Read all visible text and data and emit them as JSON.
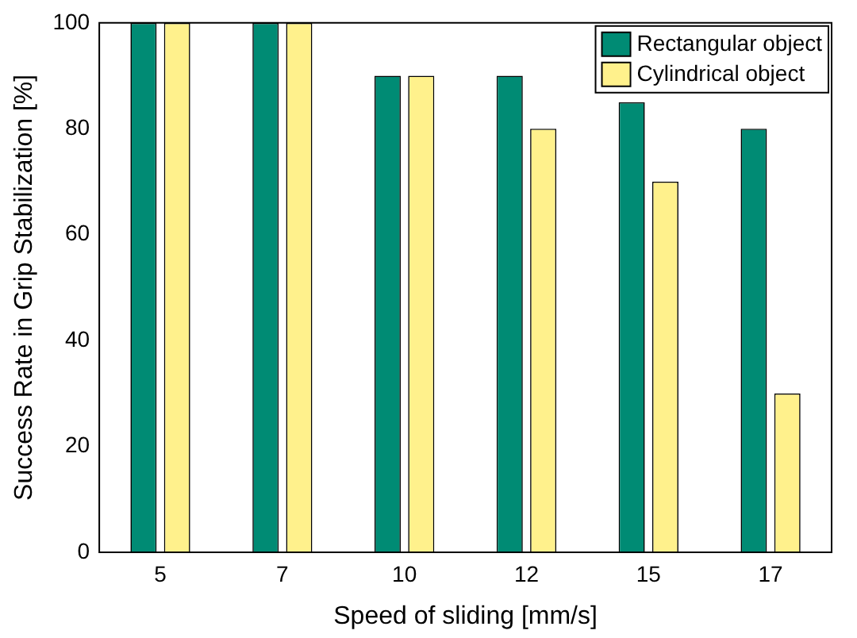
{
  "chart_data": {
    "type": "bar",
    "xlabel": "Speed of sliding [mm/s]",
    "ylabel": "Success Rate in Grip Stabilization [%]",
    "categories": [
      "5",
      "7",
      "10",
      "12",
      "15",
      "17"
    ],
    "series": [
      {
        "name": "Rectangular object",
        "color": "#008b74",
        "values": [
          100,
          100,
          90,
          90,
          85,
          80
        ]
      },
      {
        "name": "Cylindrical object",
        "color": "#fff18c",
        "values": [
          100,
          100,
          90,
          80,
          70,
          30
        ]
      }
    ],
    "ylim": [
      0,
      100
    ],
    "yticks": [
      0,
      20,
      40,
      60,
      80,
      100
    ],
    "grid": false,
    "legend": "top right"
  }
}
